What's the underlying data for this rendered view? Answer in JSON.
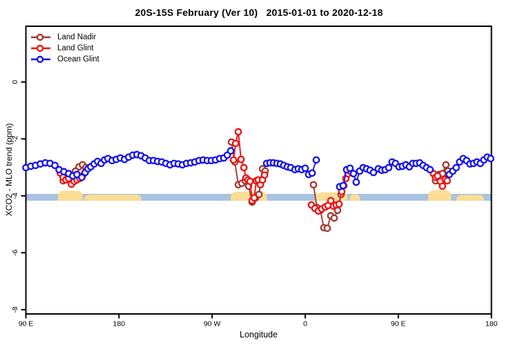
{
  "chart_data": {
    "type": "line",
    "title": "20S-15S February (Ver 10)   2015-01-01 to 2020-12-18",
    "xlabel": "Longitude",
    "ylabel": "XCO2 - MLO trend (ppm)",
    "xlim": [
      0,
      450
    ],
    "ylim": [
      -8.15,
      1.96
    ],
    "x_axis_note": "x is degrees eastward along wrapped longitude axis starting at 90E (90E-180-90W-0-90E-180)",
    "x_ticks": {
      "positions": [
        0,
        90,
        180,
        270,
        360,
        450
      ],
      "labels": [
        "90 E",
        "180",
        "90 W",
        "0",
        "90 E",
        "180"
      ]
    },
    "y_ticks": {
      "positions": [
        0,
        -2,
        -4,
        -6,
        -8
      ],
      "labels": [
        "0",
        "-2",
        "-4",
        "-6",
        "-8"
      ]
    },
    "grid": "off",
    "reference_band": {
      "y_top": -3.93,
      "y_bottom": -4.17,
      "color": "#a9c3e2"
    },
    "land_profile": {
      "color": "#fcdd94",
      "blobs": [
        {
          "x1": 31,
          "x2": 55,
          "top": -3.82
        },
        {
          "x1": 56,
          "x2": 112,
          "top": -3.96
        },
        {
          "x1": 198,
          "x2": 233,
          "top": -3.85
        },
        {
          "x1": 280,
          "x2": 311,
          "top": -3.88
        },
        {
          "x1": 313,
          "x2": 323,
          "top": -3.94
        },
        {
          "x1": 389,
          "x2": 411,
          "top": -3.8
        },
        {
          "x1": 416,
          "x2": 443,
          "top": -3.97
        }
      ]
    },
    "legend": {
      "position": "top-left",
      "entries": [
        "Land Nadir",
        "Land Glint",
        "Ocean Glint"
      ]
    },
    "series": [
      {
        "name": "Land Nadir",
        "color": "#a2392f",
        "segments": [
          [
            [
              36,
              -3.47
            ],
            [
              40.7,
              -3.35
            ],
            [
              44.7,
              -3.25
            ],
            [
              48,
              -3.13
            ],
            [
              51.3,
              -2.98
            ],
            [
              54.7,
              -2.91
            ],
            [
              58,
              -3.0
            ]
          ],
          [
            [
              198.7,
              -2.11
            ],
            [
              202,
              -2.81
            ],
            [
              205.3,
              -3.61
            ],
            [
              208.7,
              -3.56
            ],
            [
              212,
              -3.47
            ],
            [
              215.3,
              -3.66
            ],
            [
              218.7,
              -4.22
            ],
            [
              222,
              -4.07
            ],
            [
              225.3,
              -3.95
            ],
            [
              228.7,
              -3.05
            ],
            [
              231.3,
              -3.13
            ]
          ],
          [
            [
              278,
              -3.61
            ],
            [
              281.3,
              -4.41
            ],
            [
              284.7,
              -4.51
            ],
            [
              288,
              -5.12
            ],
            [
              291.3,
              -5.14
            ],
            [
              294.7,
              -4.7
            ],
            [
              298,
              -4.78
            ],
            [
              301.3,
              -4.51
            ],
            [
              304.7,
              -3.95
            ]
          ],
          [
            [
              396,
              -3.47
            ],
            [
              399.3,
              -3.25
            ],
            [
              402.7,
              -3.22
            ],
            [
              406,
              -2.91
            ],
            [
              408,
              -3.13
            ]
          ]
        ]
      },
      {
        "name": "Land Glint",
        "color": "#ee1111",
        "segments": [
          [
            [
              33.3,
              -3.2
            ],
            [
              36,
              -3.35
            ],
            [
              38.7,
              -3.44
            ],
            [
              41.3,
              -3.39
            ],
            [
              44,
              -3.59
            ],
            [
              46.7,
              -3.49
            ],
            [
              49.3,
              -3.44
            ],
            [
              52,
              -3.39
            ],
            [
              54.7,
              -3.3
            ]
          ],
          [
            [
              200.7,
              -2.74
            ],
            [
              202.7,
              -2.16
            ],
            [
              205.3,
              -1.75
            ],
            [
              208,
              -2.72
            ],
            [
              210.7,
              -3.01
            ],
            [
              212.7,
              -3.37
            ],
            [
              214.7,
              -3.44
            ],
            [
              216.7,
              -3.49
            ],
            [
              218.7,
              -4.17
            ],
            [
              220.7,
              -4.07
            ],
            [
              222.7,
              -3.47
            ],
            [
              224.7,
              -3.44
            ],
            [
              226.7,
              -3.61
            ],
            [
              228.7,
              -3.44
            ],
            [
              230.7,
              -3.27
            ]
          ],
          [
            [
              276,
              -4.32
            ],
            [
              279.3,
              -4.44
            ],
            [
              282.7,
              -4.53
            ],
            [
              286,
              -4.46
            ],
            [
              289.3,
              -4.39
            ],
            [
              292,
              -4.34
            ],
            [
              294.7,
              -4.17
            ],
            [
              297.3,
              -4.36
            ],
            [
              300,
              -4.32
            ],
            [
              302.7,
              -4.29
            ],
            [
              305.3,
              -3.85
            ],
            [
              307.3,
              -3.64
            ],
            [
              309.3,
              -3.39
            ],
            [
              311.3,
              -3.22
            ],
            [
              313.3,
              -3.13
            ]
          ],
          [
            [
              394,
              -3.22
            ],
            [
              396,
              -3.35
            ],
            [
              398,
              -3.3
            ],
            [
              400.7,
              -3.49
            ],
            [
              402.7,
              -3.66
            ],
            [
              405.3,
              -3.42
            ],
            [
              407.3,
              -3.47
            ]
          ]
        ]
      },
      {
        "name": "Ocean Glint",
        "color": "#1414e6",
        "segments": [
          [
            [
              0,
              -3.01
            ],
            [
              4.7,
              -2.96
            ],
            [
              9.3,
              -2.93
            ],
            [
              14,
              -2.88
            ],
            [
              18.7,
              -2.84
            ],
            [
              23.3,
              -2.86
            ],
            [
              28,
              -2.93
            ],
            [
              32,
              -3.08
            ],
            [
              36.7,
              -3.15
            ],
            [
              41.3,
              -3.22
            ],
            [
              45.3,
              -3.3
            ],
            [
              49.3,
              -3.25
            ],
            [
              54,
              -3.35
            ],
            [
              57.3,
              -3.18
            ],
            [
              60,
              -3.05
            ],
            [
              62.7,
              -2.98
            ],
            [
              66,
              -2.88
            ],
            [
              69.3,
              -2.79
            ],
            [
              72.7,
              -2.86
            ],
            [
              76,
              -2.74
            ],
            [
              79.3,
              -2.69
            ],
            [
              83.3,
              -2.76
            ],
            [
              87.3,
              -2.72
            ],
            [
              91.3,
              -2.67
            ],
            [
              95.3,
              -2.72
            ],
            [
              99.3,
              -2.64
            ],
            [
              103.3,
              -2.57
            ],
            [
              107.3,
              -2.55
            ],
            [
              111.3,
              -2.59
            ],
            [
              115.3,
              -2.67
            ],
            [
              119.3,
              -2.76
            ],
            [
              123.3,
              -2.76
            ],
            [
              127.3,
              -2.79
            ],
            [
              131.3,
              -2.81
            ],
            [
              135.3,
              -2.86
            ],
            [
              139.3,
              -2.91
            ],
            [
              143.3,
              -2.86
            ],
            [
              147.3,
              -2.88
            ],
            [
              151.3,
              -2.91
            ],
            [
              155.3,
              -2.86
            ],
            [
              159.3,
              -2.84
            ],
            [
              163.3,
              -2.81
            ],
            [
              167.3,
              -2.76
            ],
            [
              171.3,
              -2.74
            ],
            [
              175.3,
              -2.76
            ],
            [
              179.3,
              -2.76
            ],
            [
              183.3,
              -2.74
            ],
            [
              187.3,
              -2.69
            ],
            [
              191.3,
              -2.67
            ],
            [
              194.7,
              -2.57
            ],
            [
              198,
              -2.42
            ]
          ],
          [
            [
              232.7,
              -2.86
            ],
            [
              236,
              -2.84
            ],
            [
              239.3,
              -2.84
            ],
            [
              242.7,
              -2.86
            ],
            [
              246,
              -2.88
            ],
            [
              249.3,
              -2.93
            ],
            [
              252.7,
              -2.98
            ],
            [
              256,
              -3.01
            ],
            [
              260,
              -3.08
            ],
            [
              263.3,
              -3.05
            ],
            [
              266.7,
              -3.08
            ],
            [
              270,
              -3.03
            ],
            [
              273.3,
              -3.25
            ],
            [
              276.7,
              -3.2
            ],
            [
              280.7,
              -2.74
            ]
          ],
          [
            [
              303.3,
              -3.68
            ],
            [
              306.7,
              -3.64
            ],
            [
              310,
              -3.08
            ],
            [
              313.3,
              -3.03
            ],
            [
              316.7,
              -3.22
            ],
            [
              319.3,
              -3.52
            ],
            [
              322.7,
              -3.13
            ],
            [
              326,
              -3.01
            ],
            [
              329.3,
              -3.05
            ],
            [
              332.7,
              -3.1
            ],
            [
              336,
              -3.18
            ],
            [
              340.7,
              -3.05
            ],
            [
              344,
              -3.1
            ],
            [
              347.3,
              -3.08
            ],
            [
              350.7,
              -3.01
            ],
            [
              354,
              -2.81
            ],
            [
              357.3,
              -2.86
            ],
            [
              360.7,
              -2.98
            ],
            [
              364,
              -2.96
            ],
            [
              367.3,
              -2.91
            ],
            [
              370.7,
              -2.98
            ],
            [
              374,
              -2.86
            ],
            [
              377.3,
              -2.86
            ],
            [
              380.7,
              -2.84
            ],
            [
              384,
              -2.93
            ],
            [
              387.3,
              -3.01
            ],
            [
              390.7,
              -3.08
            ]
          ],
          [
            [
              409.3,
              -3.25
            ],
            [
              412.7,
              -3.13
            ],
            [
              416,
              -3.01
            ],
            [
              419.3,
              -2.81
            ],
            [
              422.7,
              -2.69
            ],
            [
              426,
              -2.76
            ],
            [
              429.3,
              -2.88
            ],
            [
              432.7,
              -2.86
            ],
            [
              436,
              -2.81
            ],
            [
              439.3,
              -2.86
            ],
            [
              442.7,
              -2.74
            ],
            [
              446,
              -2.64
            ],
            [
              449.3,
              -2.69
            ]
          ]
        ]
      }
    ]
  }
}
